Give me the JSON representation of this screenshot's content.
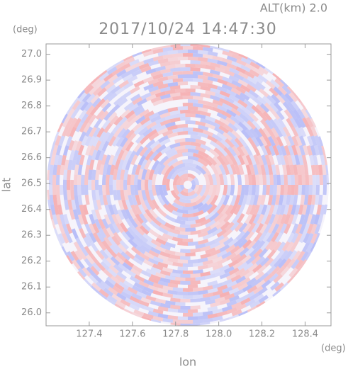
{
  "chart_data": {
    "type": "ppi",
    "altitude_label": "ALT(km) 2.0",
    "title": "2017/10/24 14:47:30",
    "x_label": "lon",
    "y_label": "lat",
    "x_unit": "(deg)",
    "y_unit": "(deg)",
    "xlim": [
      127.2,
      128.52
    ],
    "ylim": [
      25.95,
      27.04
    ],
    "xticks": [
      127.4,
      127.6,
      127.8,
      {
        "value": 128,
        "label": "128.0"
      },
      128.2,
      128.4
    ],
    "yticks": [
      {
        "value": 26,
        "label": "26.0"
      },
      26.1,
      26.2,
      26.3,
      26.4,
      26.5,
      26.6,
      26.7,
      26.8,
      26.9,
      {
        "value": 27,
        "label": "27.0"
      }
    ]
  }
}
